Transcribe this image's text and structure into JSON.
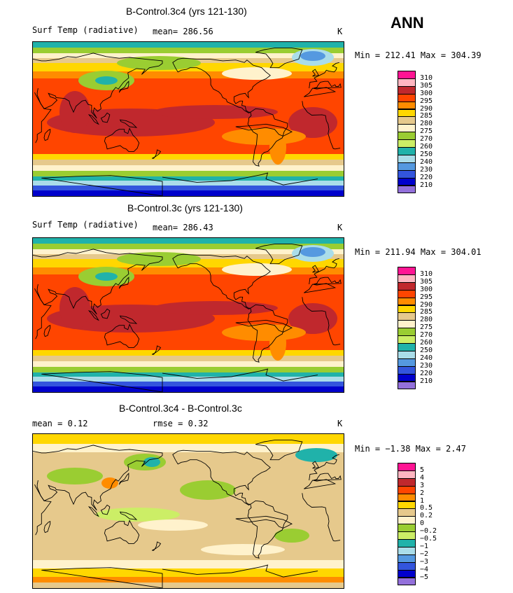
{
  "season": "ANN",
  "panels": [
    {
      "title": "B-Control.3c4 (yrs 121-130)",
      "left_label": "Surf Temp (radiative)",
      "center_label": "mean= 286.56",
      "units": "K",
      "minmax": "Min = 212.41 Max = 304.39",
      "field": "temperature",
      "colorbar_labels": [
        "310",
        "305",
        "300",
        "295",
        "290",
        "285",
        "280",
        "275",
        "270",
        "260",
        "250",
        "240",
        "230",
        "220",
        "210"
      ]
    },
    {
      "title": "B-Control.3c (yrs 121-130)",
      "left_label": "Surf Temp (radiative)",
      "center_label": "mean= 286.43",
      "units": "K",
      "minmax": "Min = 211.94 Max = 304.01",
      "field": "temperature",
      "colorbar_labels": [
        "310",
        "305",
        "300",
        "295",
        "290",
        "285",
        "280",
        "275",
        "270",
        "260",
        "250",
        "240",
        "230",
        "220",
        "210"
      ]
    },
    {
      "title": "B-Control.3c4 - B-Control.3c",
      "left_label": "mean =    0.12",
      "center_label": "rmse =    0.32",
      "units": "K",
      "minmax": "Min =  −1.38 Max =    2.47",
      "field": "difference",
      "colorbar_labels": [
        "5",
        "4",
        "3",
        "2",
        "1",
        "0.5",
        "0.2",
        "0",
        "−0.2",
        "−0.5",
        "−1",
        "−2",
        "−3",
        "−4",
        "−5"
      ]
    }
  ],
  "colors": {
    "temperature_palette": [
      "#ff1493",
      "#ffb6c1",
      "#c0282d",
      "#ff4500",
      "#ff8c00",
      "#ffd700",
      "#e6c98c",
      "#fff2cc",
      "#9acd32",
      "#ccee66",
      "#20b2aa",
      "#aadde9",
      "#5599e0",
      "#3355dd",
      "#0000cc",
      "#9370db"
    ],
    "difference_palette": [
      "#ff1493",
      "#ffb6c1",
      "#c0282d",
      "#ff4500",
      "#ff8c00",
      "#ffd700",
      "#e6c98c",
      "#fff2cc",
      "#9acd32",
      "#ccee66",
      "#20b2aa",
      "#aadde9",
      "#5599e0",
      "#3355dd",
      "#0000cc",
      "#9370db"
    ]
  }
}
